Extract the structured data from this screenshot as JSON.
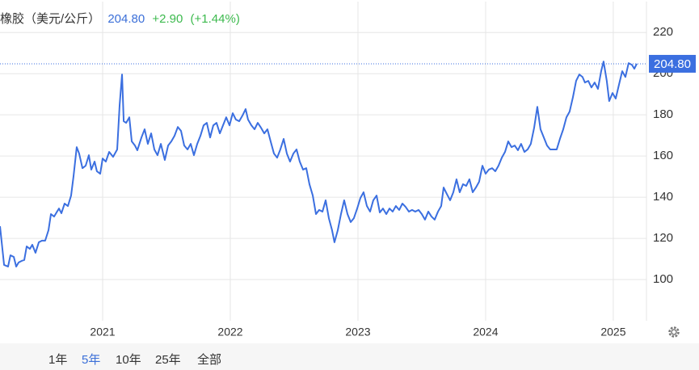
{
  "header": {
    "title": "橡胶（美元/公斤）",
    "price": "204.80",
    "change": "+2.90",
    "change_pct": "(+1.44%)"
  },
  "controls": {
    "range_buttons": [
      "1年",
      "5年",
      "10年",
      "25年",
      "全部"
    ],
    "selected": "5年"
  },
  "chart_data": {
    "type": "line",
    "color": "#3b6fe0",
    "x": [
      2020.196,
      2020.228,
      2020.259,
      2020.278,
      2020.304,
      2020.323,
      2020.342,
      2020.367,
      2020.386,
      2020.405,
      2020.43,
      2020.449,
      2020.474,
      2020.5,
      2020.525,
      2020.55,
      2020.576,
      2020.595,
      2020.62,
      2020.639,
      2020.658,
      2020.677,
      2020.702,
      2020.728,
      2020.753,
      2020.772,
      2020.797,
      2020.816,
      2020.842,
      2020.867,
      2020.892,
      2020.911,
      2020.937,
      2020.955,
      2020.981,
      2021.0,
      2021.025,
      2021.051,
      2021.082,
      2021.114,
      2021.133,
      2021.152,
      2021.165,
      2021.184,
      2021.209,
      2021.228,
      2021.253,
      2021.272,
      2021.304,
      2021.329,
      2021.354,
      2021.38,
      2021.405,
      2021.43,
      2021.456,
      2021.487,
      2021.513,
      2021.538,
      2021.563,
      2021.589,
      2021.614,
      2021.639,
      2021.665,
      2021.69,
      2021.715,
      2021.741,
      2021.766,
      2021.791,
      2021.816,
      2021.842,
      2021.867,
      2021.892,
      2021.918,
      2021.943,
      2021.968,
      2021.994,
      2022.019,
      2022.044,
      2022.07,
      2022.095,
      2022.12,
      2022.139,
      2022.165,
      2022.19,
      2022.215,
      2022.241,
      2022.266,
      2022.291,
      2022.316,
      2022.342,
      2022.367,
      2022.392,
      2022.418,
      2022.443,
      2022.468,
      2022.494,
      2022.519,
      2022.544,
      2022.57,
      2022.595,
      2022.62,
      2022.646,
      2022.671,
      2022.696,
      2022.722,
      2022.747,
      2022.772,
      2022.797,
      2022.816,
      2022.842,
      2022.867,
      2022.892,
      2022.918,
      2022.943,
      2022.968,
      2022.994,
      2023.019,
      2023.044,
      2023.07,
      2023.095,
      2023.12,
      2023.146,
      2023.171,
      2023.196,
      2023.222,
      2023.247,
      2023.272,
      2023.297,
      2023.323,
      2023.348,
      2023.373,
      2023.399,
      2023.424,
      2023.449,
      2023.475,
      2023.5,
      2023.525,
      2023.551,
      2023.576,
      2023.601,
      2023.627,
      2023.652,
      2023.671,
      2023.696,
      2023.722,
      2023.747,
      2023.772,
      2023.797,
      2023.823,
      2023.848,
      2023.873,
      2023.899,
      2023.924,
      2023.949,
      2023.975,
      2024.0,
      2024.025,
      2024.051,
      2024.076,
      2024.101,
      2024.127,
      2024.152,
      2024.177,
      2024.203,
      2024.228,
      2024.253,
      2024.278,
      2024.304,
      2024.329,
      2024.354,
      2024.38,
      2024.405,
      2024.43,
      2024.456,
      2024.481,
      2024.506,
      2024.532,
      2024.557,
      2024.582,
      2024.608,
      2024.633,
      2024.658,
      2024.684,
      2024.709,
      2024.734,
      2024.759,
      2024.778,
      2024.804,
      2024.829,
      2024.854,
      2024.88,
      2024.905,
      2024.924,
      2024.949,
      2024.968,
      2024.994,
      2025.019,
      2025.044,
      2025.07,
      2025.095,
      2025.12,
      2025.146,
      2025.165,
      2025.184
    ],
    "values": [
      125.9,
      107.1,
      106.3,
      111.8,
      111.0,
      106.3,
      108.3,
      109.1,
      109.5,
      116.1,
      114.9,
      116.9,
      113.0,
      118.1,
      118.9,
      118.9,
      124.0,
      131.8,
      130.6,
      132.6,
      134.5,
      132.2,
      136.9,
      135.7,
      140.8,
      150.2,
      164.3,
      161.2,
      154.1,
      155.3,
      160.4,
      153.4,
      157.3,
      152.6,
      151.4,
      158.8,
      157.3,
      162.0,
      159.6,
      163.2,
      184.7,
      199.6,
      176.9,
      176.1,
      178.8,
      167.1,
      165.1,
      162.8,
      169.0,
      173.0,
      165.9,
      171.0,
      163.2,
      160.4,
      165.9,
      158.1,
      165.1,
      167.1,
      169.8,
      174.1,
      172.2,
      165.1,
      163.2,
      165.9,
      160.4,
      165.9,
      169.8,
      174.9,
      176.1,
      169.0,
      174.9,
      176.1,
      171.0,
      174.9,
      178.8,
      174.9,
      180.8,
      177.7,
      176.9,
      179.6,
      182.8,
      177.7,
      174.9,
      173.0,
      176.1,
      173.7,
      171.0,
      173.0,
      167.1,
      161.2,
      159.2,
      163.2,
      168.3,
      161.2,
      157.3,
      161.2,
      163.2,
      157.3,
      153.4,
      154.1,
      146.3,
      140.8,
      131.8,
      133.8,
      133.0,
      138.5,
      129.8,
      124.0,
      118.1,
      124.0,
      131.8,
      138.5,
      131.8,
      127.9,
      129.8,
      134.5,
      139.6,
      142.4,
      135.7,
      133.0,
      138.5,
      140.8,
      132.6,
      134.5,
      131.8,
      134.5,
      133.0,
      135.7,
      133.8,
      136.9,
      135.3,
      133.0,
      133.8,
      133.0,
      133.8,
      131.8,
      129.1,
      133.0,
      130.6,
      129.1,
      133.0,
      135.7,
      144.7,
      141.6,
      138.5,
      142.4,
      148.7,
      142.4,
      146.3,
      145.5,
      148.7,
      142.4,
      144.7,
      147.5,
      155.3,
      151.4,
      153.4,
      154.1,
      152.6,
      155.3,
      159.2,
      162.0,
      167.1,
      164.3,
      165.1,
      162.8,
      165.9,
      162.0,
      163.2,
      165.9,
      173.7,
      183.9,
      173.0,
      169.0,
      165.1,
      163.2,
      163.2,
      163.2,
      168.3,
      173.0,
      178.8,
      181.6,
      188.6,
      196.5,
      199.6,
      198.4,
      195.7,
      196.5,
      193.3,
      195.7,
      192.6,
      201.2,
      205.9,
      196.5,
      186.7,
      190.6,
      187.9,
      194.5,
      201.2,
      198.4,
      205.1,
      204.3,
      202.4,
      204.8
    ],
    "xlim": [
      2020.196,
      2025.26
    ],
    "xticks": [
      2021,
      2022,
      2023,
      2024,
      2025
    ],
    "ylim": [
      80,
      235
    ],
    "yticks": [
      100,
      120,
      140,
      160,
      180,
      200,
      220
    ],
    "grid": true,
    "last_line": {
      "value": 204.8,
      "label": "204.80"
    }
  }
}
